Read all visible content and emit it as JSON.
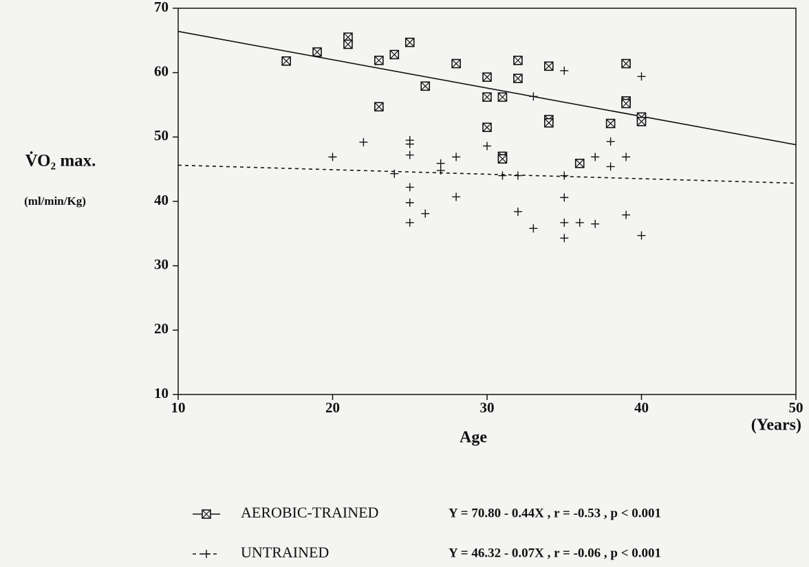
{
  "chart_data": {
    "type": "scatter",
    "ylabel": "V̇O₂ max.",
    "ylabel_unit": "(ml/min/Kg)",
    "xlabel": "Age",
    "xlabel_unit": "(Years)",
    "xlim": [
      10,
      50
    ],
    "xticks": [
      10,
      20,
      30,
      40,
      50
    ],
    "ylim": [
      10,
      70
    ],
    "yticks": [
      10,
      20,
      30,
      40,
      50,
      60,
      70
    ],
    "series": [
      {
        "name": "AEROBIC-TRAINED",
        "marker": "boxed-x",
        "color": "#111111",
        "line_style": "solid",
        "equation": "Y = 70.80 - 0.44X , r = -0.53 , p < 0.001",
        "fit": {
          "intercept": 70.8,
          "slope": -0.44
        },
        "x": [
          17,
          19,
          21,
          21,
          23,
          23,
          24,
          25,
          26,
          28,
          30,
          30,
          30,
          31,
          31,
          31,
          32,
          32,
          34,
          34,
          34,
          36,
          38,
          39,
          39,
          39,
          40,
          40
        ],
        "y": [
          61.8,
          63.2,
          65.5,
          64.4,
          61.9,
          54.7,
          62.8,
          64.7,
          57.9,
          61.4,
          59.3,
          56.2,
          51.5,
          56.2,
          47.0,
          46.6,
          61.9,
          59.1,
          61.0,
          52.7,
          52.2,
          45.9,
          52.1,
          61.4,
          55.6,
          55.2,
          53.1,
          52.4
        ]
      },
      {
        "name": "UNTRAINED",
        "marker": "plus",
        "color": "#111111",
        "line_style": "dashed",
        "equation": "Y = 46.32 - 0.07X , r = -0.06 , p < 0.001",
        "fit": {
          "intercept": 46.32,
          "slope": -0.07
        },
        "x": [
          20,
          22,
          24,
          25,
          25,
          25,
          25,
          25,
          25,
          26,
          27,
          27,
          28,
          28,
          30,
          31,
          32,
          32,
          33,
          33,
          35,
          35,
          35,
          35,
          35,
          36,
          37,
          37,
          38,
          38,
          39,
          39,
          40,
          40
        ],
        "y": [
          46.9,
          49.2,
          44.3,
          49.5,
          48.9,
          47.2,
          42.2,
          39.8,
          36.7,
          38.1,
          45.9,
          44.8,
          46.9,
          40.7,
          48.6,
          44.0,
          44.0,
          38.4,
          35.8,
          56.3,
          60.3,
          44.0,
          40.6,
          36.7,
          34.3,
          36.7,
          36.5,
          46.9,
          49.3,
          45.4,
          46.9,
          37.9,
          59.4,
          34.7
        ]
      }
    ]
  }
}
